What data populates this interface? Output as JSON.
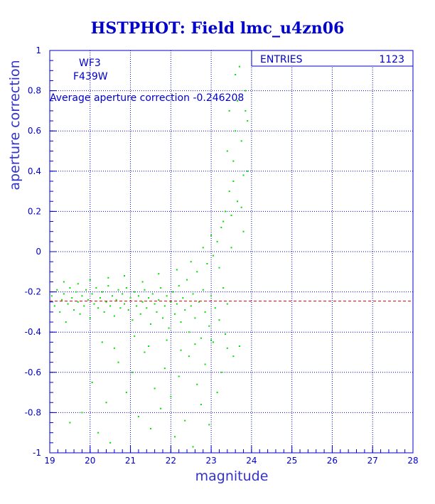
{
  "chart_data": {
    "type": "scatter",
    "title": "HSTPHOT: Field lmc_u4zn06",
    "xlabel": "magnitude",
    "ylabel": "aperture correction",
    "xlim": [
      19,
      28
    ],
    "ylim": [
      -1,
      1
    ],
    "x_ticks": [
      "19",
      "20",
      "21",
      "22",
      "23",
      "24",
      "25",
      "26",
      "27",
      "28"
    ],
    "y_ticks": [
      "-1",
      "-0.8",
      "-0.6",
      "-0.4",
      "-0.2",
      "0",
      "0.2",
      "0.4",
      "0.6",
      "0.8",
      "1"
    ],
    "grid": true,
    "annotations": {
      "camera": "WF3",
      "filter": "F439W",
      "average_text": "Average aperture correction -0.246208",
      "average_value": -0.246208
    },
    "stats_box": {
      "label": "ENTRIES",
      "value": "1123",
      "position": "top-right"
    },
    "point_color": "#00dd00",
    "mean_line_color": "#dd0000",
    "points": [
      [
        19.05,
        -0.22
      ],
      [
        19.12,
        -0.27
      ],
      [
        19.18,
        -0.19
      ],
      [
        19.25,
        -0.3
      ],
      [
        19.3,
        -0.24
      ],
      [
        19.35,
        -0.21
      ],
      [
        19.4,
        -0.35
      ],
      [
        19.45,
        -0.26
      ],
      [
        19.5,
        -0.18
      ],
      [
        19.55,
        -0.23
      ],
      [
        19.6,
        -0.29
      ],
      [
        19.65,
        -0.2
      ],
      [
        19.7,
        -0.25
      ],
      [
        19.75,
        -0.31
      ],
      [
        19.8,
        -0.22
      ],
      [
        19.85,
        -0.27
      ],
      [
        19.9,
        -0.19
      ],
      [
        19.95,
        -0.24
      ],
      [
        20.0,
        -0.33
      ],
      [
        20.05,
        -0.21
      ],
      [
        20.1,
        -0.26
      ],
      [
        20.15,
        -0.18
      ],
      [
        20.2,
        -0.28
      ],
      [
        20.25,
        -0.23
      ],
      [
        20.3,
        -0.2
      ],
      [
        20.35,
        -0.3
      ],
      [
        20.4,
        -0.25
      ],
      [
        20.45,
        -0.17
      ],
      [
        20.5,
        -0.27
      ],
      [
        20.55,
        -0.22
      ],
      [
        20.6,
        -0.32
      ],
      [
        20.65,
        -0.24
      ],
      [
        20.7,
        -0.19
      ],
      [
        20.75,
        -0.28
      ],
      [
        20.8,
        -0.21
      ],
      [
        20.85,
        -0.26
      ],
      [
        20.9,
        -0.18
      ],
      [
        20.95,
        -0.29
      ],
      [
        21.0,
        -0.23
      ],
      [
        21.05,
        -0.34
      ],
      [
        21.1,
        -0.2
      ],
      [
        21.15,
        -0.27
      ],
      [
        21.2,
        -0.22
      ],
      [
        21.25,
        -0.31
      ],
      [
        21.3,
        -0.25
      ],
      [
        21.35,
        -0.19
      ],
      [
        21.4,
        -0.28
      ],
      [
        21.45,
        -0.23
      ],
      [
        21.5,
        -0.36
      ],
      [
        21.55,
        -0.21
      ],
      [
        21.6,
        -0.26
      ],
      [
        21.65,
        -0.3
      ],
      [
        21.7,
        -0.24
      ],
      [
        21.75,
        -0.18
      ],
      [
        21.8,
        -0.33
      ],
      [
        21.85,
        -0.27
      ],
      [
        21.9,
        -0.22
      ],
      [
        21.95,
        -0.38
      ],
      [
        22.0,
        -0.25
      ],
      [
        22.05,
        -0.2
      ],
      [
        22.1,
        -0.31
      ],
      [
        22.15,
        -0.26
      ],
      [
        22.2,
        -0.17
      ],
      [
        22.25,
        -0.35
      ],
      [
        22.3,
        -0.23
      ],
      [
        22.35,
        -0.29
      ],
      [
        22.4,
        -0.14
      ],
      [
        22.45,
        -0.4
      ],
      [
        22.5,
        -0.27
      ],
      [
        22.55,
        -0.21
      ],
      [
        22.6,
        -0.33
      ],
      [
        22.65,
        -0.1
      ],
      [
        22.7,
        -0.25
      ],
      [
        22.75,
        -0.43
      ],
      [
        22.8,
        -0.19
      ],
      [
        22.85,
        -0.3
      ],
      [
        22.9,
        -0.06
      ],
      [
        22.95,
        -0.37
      ],
      [
        23.0,
        -0.22
      ],
      [
        23.05,
        -0.02
      ],
      [
        23.1,
        -0.28
      ],
      [
        23.15,
        0.05
      ],
      [
        23.2,
        -0.34
      ],
      [
        23.25,
        0.12
      ],
      [
        23.3,
        -0.18
      ],
      [
        23.35,
        0.2
      ],
      [
        23.4,
        -0.26
      ],
      [
        23.45,
        0.3
      ],
      [
        23.5,
        0.18
      ],
      [
        23.55,
        0.45
      ],
      [
        23.6,
        0.6
      ],
      [
        23.65,
        0.75
      ],
      [
        23.7,
        0.92
      ],
      [
        23.75,
        0.55
      ],
      [
        23.8,
        0.38
      ],
      [
        23.85,
        0.8
      ],
      [
        23.9,
        0.65
      ],
      [
        23.6,
        0.88
      ],
      [
        23.45,
        0.7
      ],
      [
        23.4,
        0.5
      ],
      [
        19.5,
        -0.85
      ],
      [
        19.8,
        -0.8
      ],
      [
        20.05,
        -0.65
      ],
      [
        20.2,
        -0.9
      ],
      [
        20.4,
        -0.75
      ],
      [
        20.5,
        -0.95
      ],
      [
        20.7,
        -0.55
      ],
      [
        20.9,
        -0.7
      ],
      [
        21.05,
        -0.6
      ],
      [
        21.2,
        -0.82
      ],
      [
        21.35,
        -0.5
      ],
      [
        21.5,
        -0.88
      ],
      [
        21.6,
        -0.68
      ],
      [
        21.75,
        -0.78
      ],
      [
        21.85,
        -0.58
      ],
      [
        22.0,
        -0.72
      ],
      [
        22.1,
        -0.92
      ],
      [
        22.2,
        -0.62
      ],
      [
        22.35,
        -0.84
      ],
      [
        22.45,
        -0.52
      ],
      [
        22.55,
        -0.97
      ],
      [
        22.65,
        -0.66
      ],
      [
        22.75,
        -0.76
      ],
      [
        22.85,
        -0.56
      ],
      [
        22.95,
        -0.86
      ],
      [
        23.05,
        -0.45
      ],
      [
        23.15,
        -0.7
      ],
      [
        23.25,
        -0.6
      ],
      [
        23.4,
        -0.48
      ],
      [
        23.55,
        -0.52
      ],
      [
        20.3,
        -0.45
      ],
      [
        20.6,
        -0.48
      ],
      [
        21.1,
        -0.42
      ],
      [
        21.45,
        -0.47
      ],
      [
        21.9,
        -0.44
      ],
      [
        22.25,
        -0.49
      ],
      [
        22.6,
        -0.46
      ],
      [
        23.0,
        -0.44
      ],
      [
        23.35,
        -0.41
      ],
      [
        23.7,
        -0.47
      ],
      [
        19.35,
        -0.15
      ],
      [
        19.7,
        -0.16
      ],
      [
        20.0,
        -0.14
      ],
      [
        20.45,
        -0.13
      ],
      [
        20.85,
        -0.12
      ],
      [
        21.3,
        -0.15
      ],
      [
        21.7,
        -0.11
      ],
      [
        22.15,
        -0.09
      ],
      [
        22.5,
        -0.05
      ],
      [
        22.8,
        0.02
      ],
      [
        23.0,
        0.08
      ],
      [
        23.2,
        -0.08
      ],
      [
        23.3,
        0.15
      ],
      [
        23.5,
        0.02
      ],
      [
        23.65,
        0.25
      ],
      [
        23.8,
        0.1
      ],
      [
        23.9,
        0.4
      ],
      [
        23.75,
        0.22
      ],
      [
        23.55,
        0.35
      ],
      [
        23.85,
        0.7
      ]
    ]
  }
}
